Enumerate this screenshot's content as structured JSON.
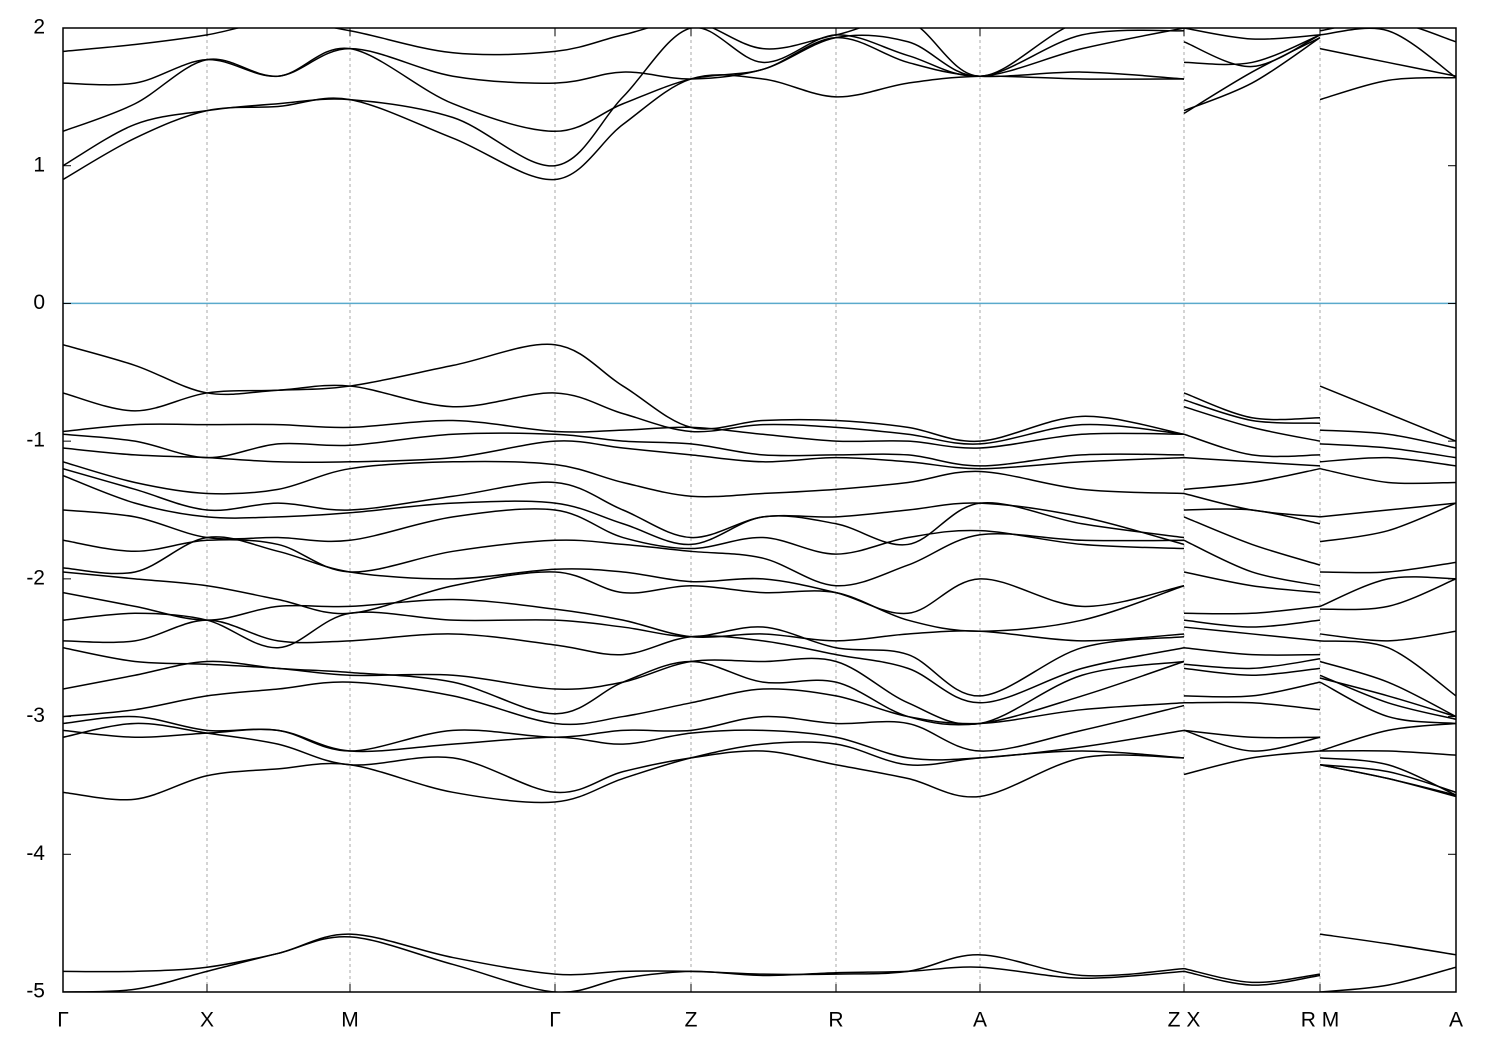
{
  "chart_data": {
    "type": "line",
    "color": "#000000",
    "grid": "x",
    "reference_line": {
      "y": 0,
      "color": "#5aaacc"
    },
    "xlim": [
      0,
      13.93
    ],
    "xticks": [
      {
        "value": 0,
        "label": "Γ"
      },
      {
        "value": 1.44,
        "label": "X"
      },
      {
        "value": 2.87,
        "label": "M"
      },
      {
        "value": 4.92,
        "label": "Γ"
      },
      {
        "value": 6.28,
        "label": "Z"
      },
      {
        "value": 7.73,
        "label": "R"
      },
      {
        "value": 9.17,
        "label": "A"
      },
      {
        "value": 11.21,
        "label": "Z X"
      },
      {
        "value": 12.57,
        "label": "R M"
      },
      {
        "value": 13.93,
        "label": "A"
      }
    ],
    "ylim": [
      -5,
      2
    ],
    "yticks": [
      -5,
      -4,
      -3,
      -2,
      -1,
      0,
      1,
      2
    ],
    "x": [
      0,
      0.72,
      1.44,
      2.15,
      2.87,
      3.9,
      4.92,
      5.6,
      6.28,
      7.0,
      7.73,
      8.45,
      9.17,
      10.19,
      11.21,
      11.21,
      11.21,
      11.89,
      12.57,
      12.57,
      12.57,
      13.25,
      13.93
    ],
    "series": [
      {
        "values": [
          0.9,
          1.2,
          1.4,
          1.43,
          1.48,
          1.2,
          0.9,
          1.3,
          1.63,
          1.63,
          1.5,
          1.6,
          1.65,
          1.63,
          1.63,
          null,
          1.4,
          1.6,
          1.93,
          null,
          1.48,
          1.62,
          1.64
        ]
      },
      {
        "values": [
          1.0,
          1.3,
          1.4,
          1.45,
          1.48,
          1.35,
          1.0,
          1.5,
          2.0,
          1.75,
          1.95,
          1.8,
          1.65,
          1.85,
          2.0,
          null,
          1.75,
          1.75,
          1.95,
          null,
          1.85,
          1.75,
          1.65
        ]
      },
      {
        "values": [
          1.25,
          1.45,
          1.77,
          1.65,
          1.85,
          1.45,
          1.25,
          1.45,
          1.63,
          1.7,
          1.93,
          1.9,
          1.65,
          1.95,
          1.98,
          null,
          1.9,
          1.72,
          1.95,
          null,
          1.95,
          1.98,
          1.64
        ]
      },
      {
        "values": [
          1.6,
          1.6,
          1.77,
          1.65,
          1.85,
          1.65,
          1.6,
          1.68,
          1.63,
          1.7,
          1.93,
          1.75,
          1.65,
          1.68,
          1.63,
          null,
          1.38,
          1.68,
          1.93,
          null,
          1.98,
          2.05,
          1.9
        ]
      },
      {
        "values": [
          1.83,
          1.88,
          1.95,
          2.05,
          1.98,
          1.82,
          1.83,
          1.95,
          2.05,
          1.85,
          1.95,
          2.05,
          1.65,
          2.05,
          2.0,
          null,
          2.0,
          1.92,
          1.95,
          null,
          2.05,
          2.1,
          2.05
        ]
      },
      {
        "values": [
          -0.3,
          -0.45,
          -0.65,
          -0.63,
          -0.6,
          -0.45,
          -0.3,
          -0.6,
          -0.9,
          -0.85,
          -0.85,
          -0.9,
          -1.0,
          -0.82,
          -0.95,
          null,
          -0.65,
          -0.83,
          -0.83,
          null,
          -0.6,
          -0.8,
          -1.0
        ]
      },
      {
        "values": [
          -0.65,
          -0.78,
          -0.65,
          -0.63,
          -0.6,
          -0.75,
          -0.65,
          -0.8,
          -0.93,
          -0.88,
          -0.9,
          -0.95,
          -1.02,
          -0.88,
          -0.95,
          null,
          -0.7,
          -0.85,
          -0.87,
          null,
          -0.92,
          -0.95,
          -1.05
        ]
      },
      {
        "values": [
          -0.93,
          -0.88,
          -0.88,
          -0.88,
          -0.9,
          -0.85,
          -0.93,
          -0.92,
          -0.9,
          -0.95,
          -1.0,
          -1.0,
          -1.05,
          -0.95,
          -0.95,
          null,
          -0.75,
          -0.9,
          -1.0,
          null,
          -1.02,
          -1.05,
          -1.12
        ]
      },
      {
        "values": [
          -0.95,
          -1.0,
          -1.12,
          -1.02,
          -1.03,
          -0.95,
          -0.95,
          -1.0,
          -1.02,
          -1.1,
          -1.1,
          -1.1,
          -1.18,
          -1.1,
          -1.1,
          null,
          -0.95,
          -1.1,
          -1.1,
          null,
          -1.15,
          -1.12,
          -1.18
        ]
      },
      {
        "values": [
          -1.05,
          -1.1,
          -1.12,
          -1.15,
          -1.15,
          -1.12,
          -1.0,
          -1.05,
          -1.1,
          -1.15,
          -1.12,
          -1.15,
          -1.2,
          -1.15,
          -1.12,
          null,
          -1.12,
          -1.15,
          -1.18,
          null,
          -1.2,
          -1.3,
          -1.3
        ]
      },
      {
        "values": [
          -1.15,
          -1.3,
          -1.38,
          -1.35,
          -1.2,
          -1.15,
          -1.17,
          -1.3,
          -1.4,
          -1.38,
          -1.35,
          -1.3,
          -1.22,
          -1.35,
          -1.38,
          null,
          -1.35,
          -1.3,
          -1.2,
          null,
          -1.55,
          -1.5,
          -1.45
        ]
      },
      {
        "values": [
          -1.2,
          -1.35,
          -1.5,
          -1.45,
          -1.5,
          -1.4,
          -1.3,
          -1.5,
          -1.7,
          -1.55,
          -1.55,
          -1.5,
          -1.45,
          -1.55,
          -1.75,
          null,
          -1.38,
          -1.5,
          -1.55,
          null,
          -1.73,
          -1.65,
          -1.45
        ]
      },
      {
        "values": [
          -1.25,
          -1.45,
          -1.55,
          -1.55,
          -1.52,
          -1.45,
          -1.45,
          -1.6,
          -1.75,
          -1.55,
          -1.6,
          -1.75,
          -1.45,
          -1.6,
          -1.7,
          null,
          -1.5,
          -1.5,
          -1.6,
          null,
          -1.95,
          -1.95,
          -1.88
        ]
      },
      {
        "values": [
          -1.5,
          -1.55,
          -1.7,
          -1.7,
          -1.72,
          -1.55,
          -1.5,
          -1.7,
          -1.78,
          -1.7,
          -1.82,
          -1.7,
          -1.65,
          -1.75,
          -1.78,
          null,
          -1.55,
          -1.75,
          -1.9,
          null,
          -2.2,
          -2.0,
          -2.0
        ]
      },
      {
        "values": [
          -1.72,
          -1.8,
          -1.72,
          -1.75,
          -1.95,
          -1.8,
          -1.72,
          -1.75,
          -1.8,
          -1.85,
          -2.05,
          -1.9,
          -1.68,
          -1.72,
          -1.72,
          null,
          -1.72,
          -1.95,
          -2.05,
          null,
          -2.22,
          -2.2,
          -2.0
        ]
      },
      {
        "values": [
          -1.92,
          -1.95,
          -1.7,
          -1.8,
          -1.95,
          -2.0,
          -1.93,
          -1.95,
          -2.02,
          -2.0,
          -2.1,
          -2.25,
          -2.0,
          -2.2,
          -2.05,
          null,
          -1.95,
          -2.05,
          -2.1,
          null,
          -2.4,
          -2.45,
          -2.38
        ]
      },
      {
        "values": [
          -1.95,
          -2.0,
          -2.05,
          -2.15,
          -2.25,
          -2.05,
          -1.95,
          -2.1,
          -2.05,
          -2.1,
          -2.1,
          -2.3,
          -2.38,
          -2.3,
          -2.05,
          null,
          -2.25,
          -2.25,
          -2.2,
          null,
          -2.45,
          -2.5,
          -2.85
        ]
      },
      {
        "values": [
          -2.1,
          -2.2,
          -2.3,
          -2.2,
          -2.2,
          -2.15,
          -2.22,
          -2.3,
          -2.42,
          -2.4,
          -2.45,
          -2.4,
          -2.38,
          -2.45,
          -2.4,
          null,
          -2.3,
          -2.35,
          -2.3,
          null,
          -2.6,
          -2.75,
          -3.0
        ]
      },
      {
        "values": [
          -2.3,
          -2.25,
          -2.3,
          -2.5,
          -2.25,
          -2.3,
          -2.3,
          -2.35,
          -2.42,
          -2.35,
          -2.5,
          -2.55,
          -2.85,
          -2.5,
          -2.42,
          null,
          -2.35,
          -2.4,
          -2.45,
          null,
          -2.7,
          -2.9,
          -3.02
        ]
      },
      {
        "values": [
          -2.45,
          -2.45,
          -2.3,
          -2.45,
          -2.45,
          -2.4,
          -2.48,
          -2.55,
          -2.42,
          -2.45,
          -2.55,
          -2.65,
          -2.9,
          -2.65,
          -2.5,
          null,
          -2.5,
          -2.55,
          -2.55,
          null,
          -2.75,
          -3.0,
          -3.05
        ]
      },
      {
        "values": [
          -2.5,
          -2.6,
          -2.62,
          -2.65,
          -2.7,
          -2.7,
          -2.8,
          -2.75,
          -2.6,
          -2.6,
          -2.6,
          -2.9,
          -3.05,
          -2.7,
          -2.6,
          null,
          -2.62,
          -2.65,
          -2.58,
          null,
          -3.25,
          -3.25,
          -3.28
        ]
      },
      {
        "values": [
          -2.8,
          -2.7,
          -2.6,
          -2.65,
          -2.68,
          -2.75,
          -2.98,
          -2.75,
          -2.6,
          -2.75,
          -2.75,
          -3.0,
          -3.05,
          -2.85,
          -2.6,
          null,
          -2.65,
          -2.7,
          -2.65,
          null,
          -3.35,
          -3.45,
          -3.57
        ]
      },
      {
        "values": [
          -3.0,
          -2.95,
          -2.85,
          -2.8,
          -2.75,
          -2.85,
          -3.05,
          -3.0,
          -2.9,
          -2.8,
          -2.85,
          -3.0,
          -3.05,
          -2.95,
          -2.9,
          null,
          -2.85,
          -2.85,
          -2.75,
          null,
          -2.72,
          -2.85,
          -3.0
        ]
      },
      {
        "values": [
          -3.05,
          -3.0,
          -3.1,
          -3.1,
          -3.25,
          -3.1,
          -3.15,
          -3.1,
          -3.1,
          -3.0,
          -3.05,
          -3.05,
          -3.25,
          -3.1,
          -2.92,
          null,
          -2.9,
          -2.9,
          -2.95,
          null,
          -3.25,
          -3.1,
          -3.05
        ]
      },
      {
        "values": [
          -3.1,
          -3.15,
          -3.12,
          -3.1,
          -3.25,
          -3.2,
          -3.15,
          -3.2,
          -3.12,
          -3.1,
          -3.15,
          -3.3,
          -3.3,
          -3.22,
          -3.1,
          null,
          -3.1,
          -3.15,
          -3.15,
          null,
          -3.35,
          -3.4,
          -3.55
        ]
      },
      {
        "values": [
          -3.15,
          -3.05,
          -3.12,
          -3.2,
          -3.35,
          -3.3,
          -3.55,
          -3.4,
          -3.3,
          -3.25,
          -3.35,
          -3.45,
          -3.58,
          -3.3,
          -3.3,
          null,
          -3.1,
          -3.25,
          -3.15,
          null,
          -3.3,
          -3.35,
          -3.57
        ]
      },
      {
        "values": [
          -3.55,
          -3.6,
          -3.43,
          -3.38,
          -3.35,
          -3.55,
          -3.62,
          -3.45,
          -3.3,
          -3.2,
          -3.2,
          -3.35,
          -3.3,
          -3.25,
          -3.3,
          null,
          -3.42,
          -3.3,
          -3.25,
          null,
          -3.35,
          -3.45,
          -3.58
        ]
      },
      {
        "values": [
          -4.85,
          -4.85,
          -4.82,
          -4.72,
          -4.58,
          -4.75,
          -4.87,
          -4.85,
          -4.85,
          -4.87,
          -4.87,
          -4.85,
          -4.73,
          -4.88,
          -4.83,
          null,
          -4.83,
          -4.93,
          -4.87,
          null,
          -4.58,
          -4.65,
          -4.73
        ]
      },
      {
        "values": [
          -5.0,
          -4.98,
          -4.85,
          -4.72,
          -4.6,
          -4.8,
          -5.0,
          -4.9,
          -4.85,
          -4.88,
          -4.86,
          -4.85,
          -4.82,
          -4.9,
          -4.85,
          null,
          -4.85,
          -4.95,
          -4.88,
          null,
          -5.0,
          -4.95,
          -4.82
        ]
      }
    ]
  }
}
